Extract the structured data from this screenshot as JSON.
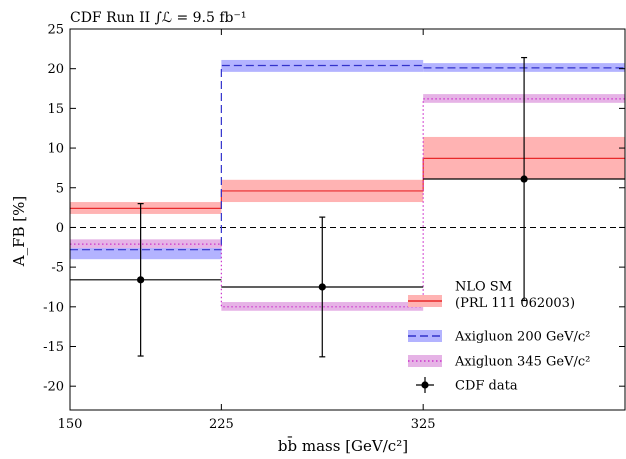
{
  "chart_data": {
    "type": "step",
    "title": "CDF Run II ∫ℒ = 9.5 fb⁻¹",
    "xlabel": "bb̄ mass [GeV/c²]",
    "ylabel": "A_FB [%]",
    "xlim": [
      150,
      425
    ],
    "ylim": [
      -23,
      25
    ],
    "xticks": [
      150,
      225,
      325
    ],
    "yticks": [
      -20,
      -15,
      -10,
      -5,
      0,
      5,
      10,
      15,
      20,
      25
    ],
    "bin_edges": [
      150,
      225,
      325,
      425
    ],
    "zero_line": true,
    "series": [
      {
        "name": "NLO SM",
        "name_line2": "(PRL 111 062003)",
        "style": "solid",
        "color": "#e8292b",
        "band_color": "#ffb3b3",
        "values": [
          2.4,
          4.6,
          8.7
        ],
        "band_low": [
          1.7,
          3.2,
          6.1
        ],
        "band_high": [
          3.2,
          6.0,
          11.4
        ]
      },
      {
        "name": "Axigluon 200 GeV/c²",
        "style": "dashed",
        "color": "#3333cc",
        "band_color": "#b3b3ff",
        "values": [
          -2.8,
          20.4,
          20.1
        ],
        "band_low": [
          -4.0,
          19.6,
          19.6
        ],
        "band_high": [
          -1.9,
          21.1,
          20.7
        ]
      },
      {
        "name": "Axigluon 345 GeV/c²",
        "style": "dotted",
        "color": "#cc33cc",
        "band_color": "#e6b3e6",
        "values": [
          -2.1,
          -10.0,
          16.2
        ],
        "band_low": [
          -2.6,
          -10.5,
          15.7
        ],
        "band_high": [
          -1.5,
          -9.4,
          16.8
        ]
      }
    ],
    "data_points": {
      "name": "CDF data",
      "color": "#000000",
      "x": [
        185,
        275,
        375
      ],
      "y": [
        -6.6,
        -7.5,
        6.1
      ],
      "xerr": [
        75,
        100,
        100
      ],
      "yerr": [
        9.6,
        8.8,
        15.3
      ]
    },
    "legend_position": "lower-right"
  }
}
